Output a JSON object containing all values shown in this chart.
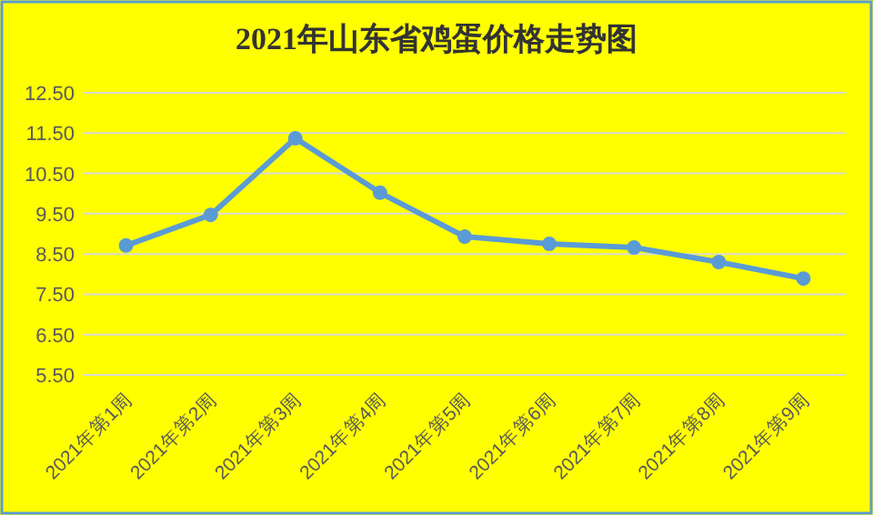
{
  "chart_data": {
    "type": "line",
    "title": "2021年山东省鸡蛋价格走势图",
    "categories": [
      "2021年第1周",
      "2021年第2周",
      "2021年第3周",
      "2021年第4周",
      "2021年第5周",
      "2021年第6周",
      "2021年第7周",
      "2021年第8周",
      "2021年第9周"
    ],
    "series": [
      {
        "color": "#5b9bd5",
        "values": [
          8.71,
          9.47,
          11.37,
          10.02,
          8.93,
          8.75,
          8.66,
          8.3,
          7.89
        ]
      }
    ],
    "ylim": [
      5.5,
      12.5
    ],
    "yticks": [
      {
        "value": 5.5,
        "label": "5.50"
      },
      {
        "value": 6.5,
        "label": "6.50"
      },
      {
        "value": 7.5,
        "label": "7.50"
      },
      {
        "value": 8.5,
        "label": "8.50"
      },
      {
        "value": 9.5,
        "label": "9.50"
      },
      {
        "value": 10.5,
        "label": "10.50"
      },
      {
        "value": 11.5,
        "label": "11.50"
      },
      {
        "value": 12.5,
        "label": "12.50"
      }
    ],
    "grid": "y",
    "marker": "circle",
    "line_style": "solid"
  }
}
